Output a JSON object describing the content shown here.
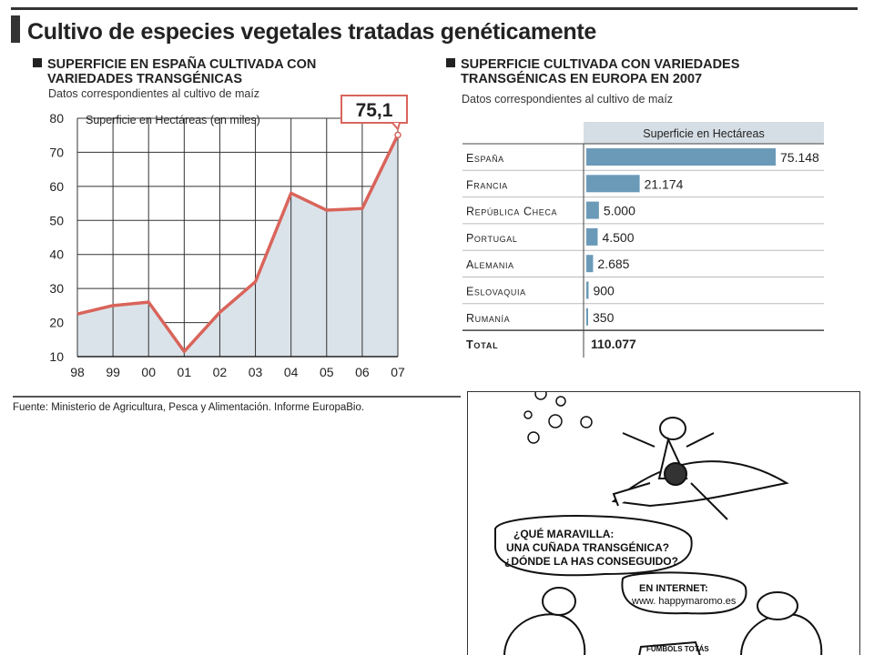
{
  "page": {
    "title": "Cultivo de especies vegetales tratadas genéticamente",
    "source": "Fuente: Ministerio de Agricultura, Pesca y Alimentación. Informe EuropaBio."
  },
  "left_section": {
    "heading_line1": "SUPERFICIE EN ESPAÑA CULTIVADA CON",
    "heading_line2": "VARIEDADES TRANSGÉNICAS",
    "subtitle": "Datos correspondientes al cultivo de maíz"
  },
  "right_section": {
    "heading_line1": "SUPERFICIE CULTIVADA CON VARIEDADES",
    "heading_line2": "TRANSGÉNICAS EN EUROPA EN 2007",
    "subtitle": "Datos correspondientes al cultivo de maíz"
  },
  "chart_data": [
    {
      "type": "area",
      "categories": [
        "98",
        "99",
        "00",
        "01",
        "02",
        "03",
        "04",
        "05",
        "06",
        "07"
      ],
      "values": [
        22.5,
        25,
        26,
        11.5,
        23,
        32,
        58,
        53,
        53.5,
        75.1
      ],
      "ylim": [
        10,
        80
      ],
      "yticks": [
        "10",
        "20",
        "30",
        "40",
        "50",
        "60",
        "70",
        "80"
      ],
      "ylabel": "Superficie en Hectáreas (en miles)",
      "callout": "75,1",
      "grid": true,
      "line_color": "#d9645b",
      "fill_color": "#dbe3ea"
    },
    {
      "type": "bar",
      "orientation": "horizontal",
      "column_header": "Superficie en Hectáreas",
      "categories": [
        "España",
        "Francia",
        "República Checa",
        "Portugal",
        "Alemania",
        "Eslovaquia",
        "Rumanía"
      ],
      "values": [
        75148,
        21174,
        5000,
        4500,
        2685,
        900,
        350
      ],
      "value_labels": [
        "75.148",
        "21.174",
        "5.000",
        "4.500",
        "2.685",
        "900",
        "350"
      ],
      "total_label": "Total",
      "total_value": "110.077",
      "bar_color": "#6a9ab8"
    }
  ],
  "cartoon": {
    "speech": "¿QUÉ MARAVILLA: UNA CUÑADA TRANSGÉNICA? ¿DÓNDE LA HAS CONSEGUIDO?",
    "reply": "EN INTERNET:",
    "url": "www. happymaromo.es",
    "sign": "FÚMBOLS TOTÁS"
  }
}
